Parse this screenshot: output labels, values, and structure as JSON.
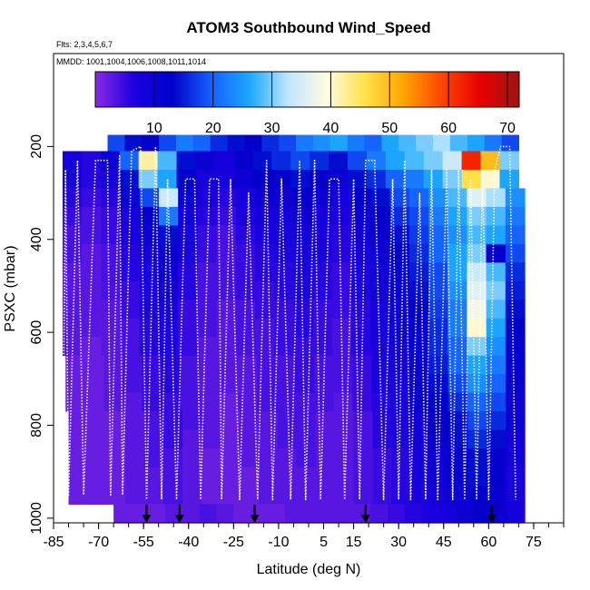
{
  "chart_data": {
    "type": "heatmap",
    "title": "ATOM3 Southbound Wind_Speed",
    "flights_note": "Flts: 2,3,4,5,6,7",
    "dates_note": "MMDD: 1001,1004,1006,1008,1011,1014",
    "xlabel": "Latitude (deg N)",
    "ylabel": "PSXC (mbar)",
    "x_ticks": [
      -85,
      -70,
      -55,
      -40,
      -25,
      -10,
      5,
      15,
      30,
      45,
      60,
      75
    ],
    "x_minor_step": 5,
    "xlim": [
      -85,
      85
    ],
    "y_ticks": [
      200,
      400,
      600,
      800,
      1000
    ],
    "ylim": [
      1010,
      0
    ],
    "colorbar": {
      "min": 0,
      "max": 72,
      "ticks": [
        10,
        20,
        30,
        40,
        50,
        60,
        70
      ],
      "colors": [
        "#8a2be2",
        "#1c00e0",
        "#0000c8",
        "#1560ff",
        "#1ca7ff",
        "#bfe6ff",
        "#fffbe0",
        "#ffe24a",
        "#ffa400",
        "#ff4400",
        "#e60000",
        "#9e1414"
      ]
    },
    "arrow_latitudes": [
      -54,
      -43,
      -18,
      19,
      61
    ],
    "flight_track": [
      [
        -82,
        950
      ],
      [
        -81,
        250
      ],
      [
        -80,
        950
      ],
      [
        -77,
        230
      ],
      [
        -75,
        950
      ],
      [
        -71,
        230
      ],
      [
        -67,
        230
      ],
      [
        -66,
        950
      ],
      [
        -63,
        220
      ],
      [
        -62,
        950
      ],
      [
        -59,
        210
      ],
      [
        -56,
        200
      ],
      [
        -54,
        960
      ],
      [
        -51,
        200
      ],
      [
        -49,
        960
      ],
      [
        -47,
        270
      ],
      [
        -44,
        960
      ],
      [
        -41,
        270
      ],
      [
        -38,
        270
      ],
      [
        -36,
        960
      ],
      [
        -33,
        270
      ],
      [
        -30,
        270
      ],
      [
        -29,
        960
      ],
      [
        -26,
        270
      ],
      [
        -23,
        960
      ],
      [
        -20,
        300
      ],
      [
        -17,
        960
      ],
      [
        -14,
        230
      ],
      [
        -12,
        960
      ],
      [
        -9,
        270
      ],
      [
        -6,
        960
      ],
      [
        -3,
        230
      ],
      [
        -1,
        960
      ],
      [
        2,
        230
      ],
      [
        4,
        960
      ],
      [
        7,
        270
      ],
      [
        10,
        270
      ],
      [
        12,
        960
      ],
      [
        15,
        270
      ],
      [
        17,
        960
      ],
      [
        19,
        230
      ],
      [
        22,
        230
      ],
      [
        25,
        960
      ],
      [
        28,
        270
      ],
      [
        30,
        960
      ],
      [
        32,
        230
      ],
      [
        34,
        960
      ],
      [
        37,
        300
      ],
      [
        39,
        960
      ],
      [
        41,
        250
      ],
      [
        43,
        960
      ],
      [
        46,
        250
      ],
      [
        48,
        960
      ],
      [
        50,
        250
      ],
      [
        52,
        960
      ],
      [
        54,
        270
      ],
      [
        56,
        960
      ],
      [
        58,
        250
      ],
      [
        60,
        960
      ],
      [
        62,
        250
      ],
      [
        64,
        200
      ],
      [
        67,
        200
      ],
      [
        69,
        960
      ]
    ],
    "field": [
      {
        "p": 190,
        "lat_range": [
          -67,
          70
        ],
        "values": [
          18,
          14,
          12,
          18,
          22,
          20,
          16,
          14,
          12,
          16,
          18,
          22,
          24,
          26,
          22,
          20,
          26,
          28,
          30,
          32,
          28,
          26,
          22,
          18
        ]
      },
      {
        "p": 230,
        "lat_range": [
          -82,
          70
        ],
        "values": [
          8,
          6,
          10,
          20,
          42,
          28,
          14,
          10,
          8,
          12,
          14,
          16,
          18,
          16,
          14,
          18,
          22,
          26,
          28,
          30,
          34,
          62,
          50,
          30
        ]
      },
      {
        "p": 270,
        "lat_range": [
          -82,
          70
        ],
        "values": [
          8,
          6,
          8,
          14,
          30,
          26,
          12,
          8,
          8,
          10,
          12,
          12,
          14,
          12,
          10,
          14,
          16,
          20,
          22,
          26,
          30,
          46,
          40,
          26
        ]
      },
      {
        "p": 310,
        "lat_range": [
          -82,
          72
        ],
        "values": [
          6,
          5,
          6,
          10,
          18,
          34,
          10,
          7,
          6,
          8,
          10,
          10,
          12,
          10,
          8,
          12,
          14,
          18,
          20,
          24,
          28,
          36,
          32,
          24
        ]
      },
      {
        "p": 350,
        "lat_range": [
          -82,
          72
        ],
        "values": [
          5,
          4,
          5,
          8,
          12,
          22,
          9,
          6,
          5,
          7,
          8,
          9,
          10,
          8,
          7,
          10,
          12,
          16,
          18,
          22,
          26,
          30,
          28,
          22
        ]
      },
      {
        "p": 390,
        "lat_range": [
          -82,
          72
        ],
        "values": [
          4,
          4,
          5,
          7,
          10,
          14,
          8,
          5,
          4,
          6,
          7,
          8,
          9,
          7,
          6,
          9,
          11,
          14,
          17,
          20,
          24,
          28,
          26,
          20
        ]
      },
      {
        "p": 430,
        "lat_range": [
          -82,
          72
        ],
        "values": [
          4,
          3,
          4,
          6,
          9,
          11,
          7,
          5,
          4,
          5,
          6,
          7,
          8,
          7,
          6,
          8,
          10,
          13,
          16,
          20,
          26,
          30,
          12,
          18
        ]
      },
      {
        "p": 470,
        "lat_range": [
          -82,
          72
        ],
        "values": [
          3,
          3,
          4,
          6,
          8,
          10,
          6,
          4,
          4,
          5,
          6,
          6,
          7,
          6,
          5,
          7,
          9,
          12,
          15,
          18,
          26,
          34,
          28,
          16
        ]
      },
      {
        "p": 510,
        "lat_range": [
          -82,
          72
        ],
        "values": [
          3,
          3,
          4,
          5,
          7,
          9,
          6,
          4,
          4,
          5,
          5,
          6,
          7,
          6,
          5,
          7,
          9,
          11,
          14,
          18,
          24,
          36,
          30,
          15
        ]
      },
      {
        "p": 550,
        "lat_range": [
          -82,
          72
        ],
        "values": [
          3,
          3,
          3,
          5,
          7,
          8,
          5,
          4,
          3,
          4,
          5,
          5,
          6,
          5,
          5,
          6,
          8,
          10,
          13,
          17,
          22,
          38,
          28,
          14
        ]
      },
      {
        "p": 590,
        "lat_range": [
          -82,
          72
        ],
        "values": [
          3,
          3,
          3,
          4,
          6,
          7,
          5,
          4,
          3,
          4,
          4,
          5,
          6,
          5,
          4,
          6,
          8,
          10,
          12,
          16,
          22,
          40,
          26,
          13
        ]
      },
      {
        "p": 630,
        "lat_range": [
          -82,
          72
        ],
        "values": [
          3,
          2,
          3,
          4,
          6,
          7,
          5,
          3,
          3,
          4,
          4,
          5,
          5,
          5,
          4,
          6,
          7,
          9,
          12,
          16,
          20,
          30,
          24,
          12
        ]
      },
      {
        "p": 670,
        "lat_range": [
          -81,
          72
        ],
        "values": [
          2,
          2,
          3,
          4,
          5,
          6,
          4,
          3,
          3,
          3,
          4,
          4,
          5,
          4,
          4,
          5,
          7,
          9,
          11,
          15,
          20,
          26,
          22,
          12
        ]
      },
      {
        "p": 710,
        "lat_range": [
          -81,
          72
        ],
        "values": [
          2,
          2,
          3,
          4,
          5,
          6,
          4,
          3,
          3,
          3,
          4,
          4,
          5,
          4,
          4,
          5,
          7,
          8,
          11,
          14,
          18,
          24,
          20,
          11
        ]
      },
      {
        "p": 750,
        "lat_range": [
          -81,
          72
        ],
        "values": [
          2,
          2,
          3,
          3,
          5,
          5,
          4,
          3,
          2,
          3,
          4,
          4,
          4,
          4,
          3,
          5,
          6,
          8,
          10,
          13,
          16,
          20,
          18,
          10
        ]
      },
      {
        "p": 790,
        "lat_range": [
          -80,
          72
        ],
        "values": [
          2,
          2,
          2,
          3,
          4,
          5,
          4,
          3,
          2,
          3,
          3,
          4,
          4,
          3,
          3,
          4,
          6,
          7,
          9,
          12,
          14,
          18,
          16,
          10
        ]
      },
      {
        "p": 830,
        "lat_range": [
          -80,
          72
        ],
        "values": [
          2,
          2,
          2,
          3,
          4,
          5,
          3,
          3,
          2,
          3,
          3,
          4,
          4,
          3,
          3,
          4,
          6,
          7,
          9,
          11,
          14,
          16,
          14,
          9
        ]
      },
      {
        "p": 870,
        "lat_range": [
          -80,
          72
        ],
        "values": [
          2,
          2,
          2,
          3,
          4,
          4,
          3,
          2,
          2,
          3,
          3,
          3,
          4,
          3,
          3,
          4,
          5,
          6,
          8,
          10,
          12,
          14,
          12,
          9
        ]
      },
      {
        "p": 910,
        "lat_range": [
          -80,
          72
        ],
        "values": [
          2,
          2,
          2,
          3,
          3,
          4,
          3,
          2,
          2,
          2,
          3,
          3,
          3,
          3,
          3,
          4,
          5,
          6,
          8,
          10,
          12,
          14,
          12,
          8
        ]
      },
      {
        "p": 950,
        "lat_range": [
          -80,
          72
        ],
        "values": [
          2,
          2,
          2,
          3,
          3,
          4,
          3,
          2,
          2,
          2,
          3,
          3,
          3,
          3,
          3,
          4,
          5,
          6,
          7,
          9,
          10,
          12,
          11,
          8
        ]
      },
      {
        "p": 990,
        "lat_range": [
          -65,
          72
        ],
        "values": [
          2,
          2,
          2,
          3,
          3,
          4,
          3,
          2,
          2,
          2,
          3,
          3,
          3,
          3,
          3,
          4,
          5,
          6,
          7,
          8,
          10,
          12,
          11,
          8
        ]
      }
    ]
  }
}
